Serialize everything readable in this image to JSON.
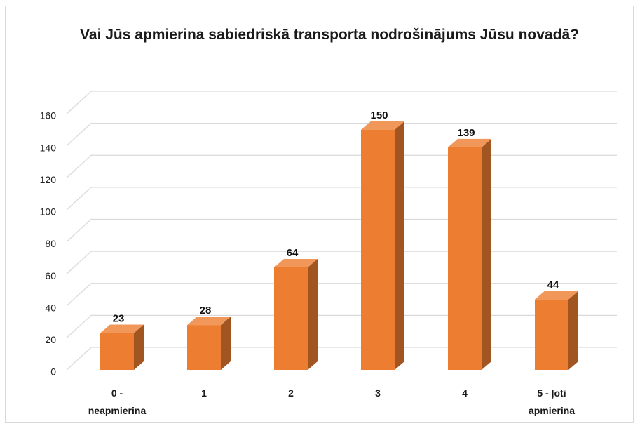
{
  "chart_data": {
    "type": "bar3d",
    "title": "Vai Jūs apmierina sabiedriskā transporta nodrošinājums Jūsu novadā?",
    "categories": [
      "0 - neapmierina",
      "1",
      "2",
      "3",
      "4",
      "5 - ļoti apmierina"
    ],
    "values": [
      23,
      28,
      64,
      150,
      139,
      44
    ],
    "color": "#ed7d31",
    "ylim": [
      0,
      160
    ],
    "yticks": [
      0,
      20,
      40,
      60,
      80,
      100,
      120,
      140,
      160
    ],
    "grid": true,
    "data_labels": true
  }
}
